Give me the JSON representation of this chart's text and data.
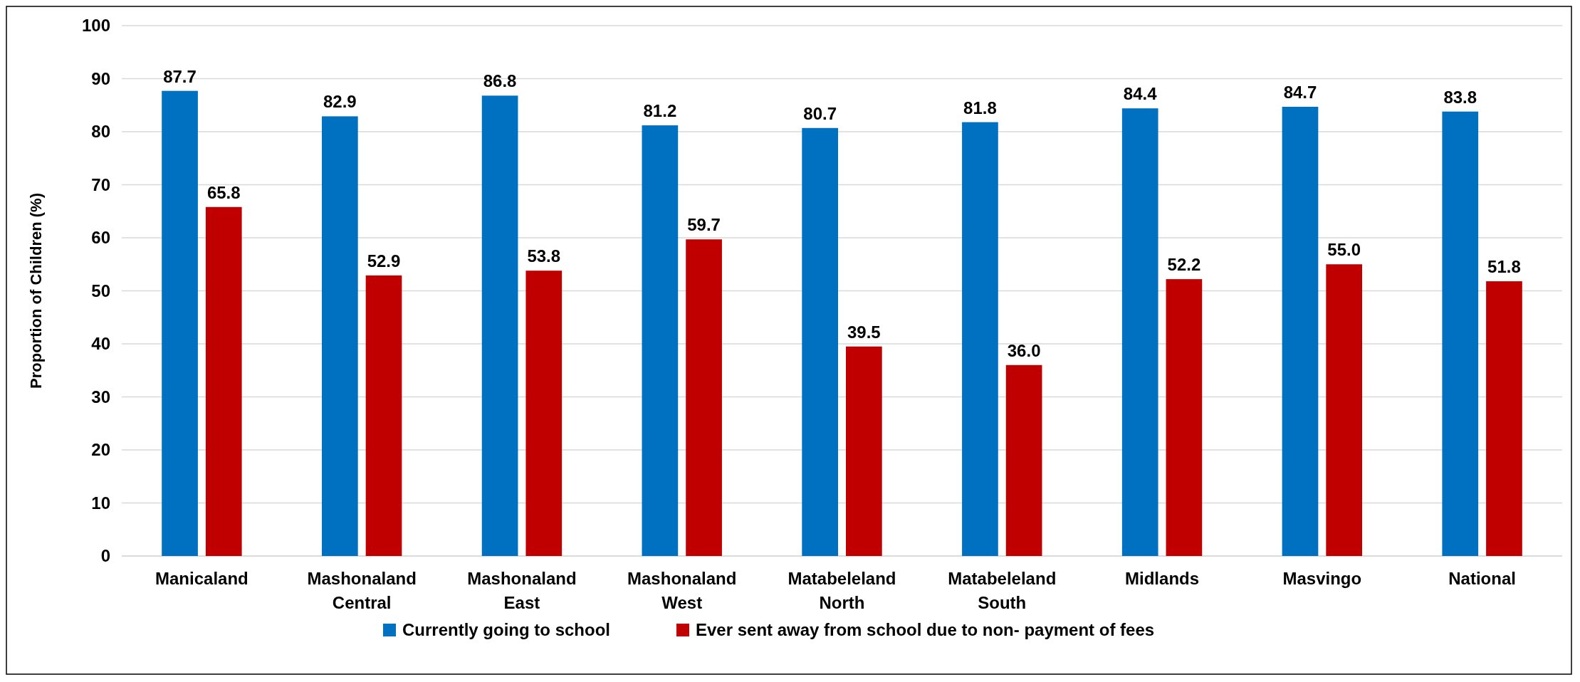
{
  "chart_data": {
    "type": "bar",
    "ylabel": "Proportion of Children (%)",
    "categories": [
      "Manicaland",
      "Mashonaland Central",
      "Mashonaland East",
      "Mashonaland West",
      "Matabeleland North",
      "Matabeleland South",
      "Midlands",
      "Masvingo",
      "National"
    ],
    "series": [
      {
        "name": "Currently going to school",
        "color": "#0070c0",
        "values": [
          87.7,
          82.9,
          86.8,
          81.2,
          80.7,
          81.8,
          84.4,
          84.7,
          83.8
        ],
        "value_labels": [
          "87.7",
          "82.9",
          "86.8",
          "81.2",
          "80.7",
          "81.8",
          "84.4",
          "84.7",
          "83.8"
        ]
      },
      {
        "name": "Ever sent away from school due to non- payment of fees",
        "color": "#c00000",
        "values": [
          65.8,
          52.9,
          53.8,
          59.7,
          39.5,
          36,
          52.2,
          55,
          51.8
        ],
        "value_labels": [
          "65.8",
          "52.9",
          "53.8",
          "59.7",
          "39.5",
          "36.0",
          "52.2",
          "55.0",
          "51.8"
        ]
      }
    ],
    "ylim": [
      0,
      100
    ],
    "yticks": [
      0,
      10,
      20,
      30,
      40,
      50,
      60,
      70,
      80,
      90,
      100
    ],
    "grid": "y",
    "legend": "bottom"
  }
}
